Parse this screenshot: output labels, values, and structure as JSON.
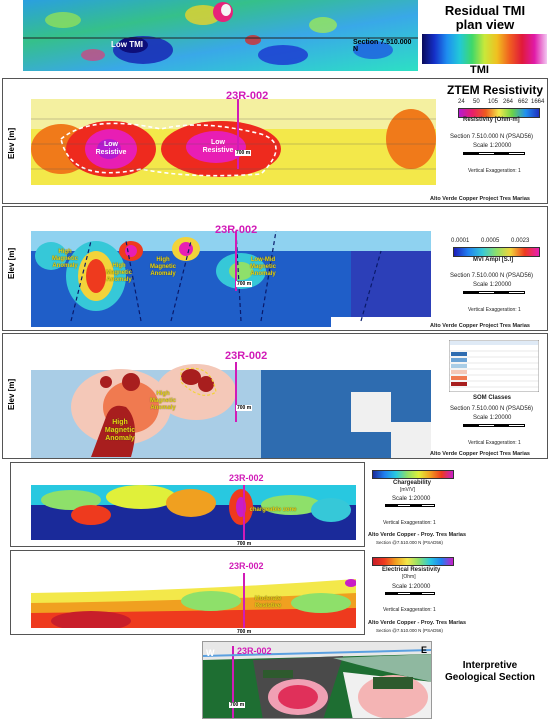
{
  "tmi_panel": {
    "label_low": "Low TMI",
    "section_label": "Section 7.510.000 N",
    "title": "Residual TMI plan view",
    "legend_label": "TMI"
  },
  "ztem_panel": {
    "title": "ZTEM Resistivity",
    "hole": "23R-002",
    "ylabel": "Elev [m]",
    "ticks": [
      "24",
      "50",
      "105",
      "264",
      "662",
      "1664"
    ],
    "units": "Resistivity [Ohm-m]",
    "section": "Section 7.510.000 N (PSAD56)",
    "scale": "Scale 1:20000",
    "vexag": "Vertical Exaggeration: 1",
    "anno1": "Low Resistive",
    "anno2": "Low Resistive",
    "depth": "700 m",
    "footer": "Alto Verde Copper Project Tres Marias"
  },
  "mvi_panel": {
    "hole": "23R-002",
    "ylabel": "Elev [m]",
    "ticks": [
      "0.0001",
      "0.0005",
      "0.0023"
    ],
    "units": "MVI Ampl [S.I]",
    "section": "Section 7.510.000 N (PSAD56)",
    "scale": "Scale 1:20000",
    "vexag": "Vertical Exaggeration: 1",
    "anno1": "High Magnetic Anomaly",
    "anno2": "High Magnetic Anomaly",
    "anno3": "High Magnetic Anomaly",
    "anno4": "Low-Mid Magnetic Anomaly",
    "depth": "700 m",
    "footer": "Alto Verde Copper Project Tres Marias"
  },
  "som_panel": {
    "hole": "23R-002",
    "ylabel": "Elev [m]",
    "legend_label": "SOM Classes",
    "section": "Section 7.510.000 N (PSAD56)",
    "scale": "Scale 1:20000",
    "vexag": "Vertical Exaggeration: 1",
    "anno1": "High Magnetic Anomaly",
    "anno2": "High Magnetic Anomaly",
    "depth": "700 m",
    "footer": "Alto Verde Copper Project Tres Marias"
  },
  "ip_panel": {
    "hole": "23R-002",
    "units": "Chargeability",
    "units2": "[mV/V]",
    "scale": "Scale 1:20000",
    "vexag": "Vertical Exaggeration: 1",
    "anno": "chargeable zone",
    "depth": "700 m",
    "footer": "Alto Verde Copper - Proy. Tres Marias",
    "sub_footer": "Section @7.510.000 N (PSAD56)"
  },
  "res_panel": {
    "hole": "23R-002",
    "units": "Electrical Resistivity",
    "units2": "[Ohm]",
    "scale": "Scale 1:20000",
    "vexag": "Vertical Exaggeration: 1",
    "anno": "Moderate Resistive",
    "depth": "700 m",
    "footer": "Alto Verde Copper - Proy. Tres Marias",
    "sub_footer": "Section @7.510.000 N (PSAD56)"
  },
  "geo_panel": {
    "hole": "23R-002",
    "west": "W",
    "east": "E",
    "depth": "700 m",
    "title": "Interpretive Geological Section"
  },
  "colors": {
    "magenta_hole": "#d11bb7",
    "annotation_yellow": "#e7d40d"
  }
}
